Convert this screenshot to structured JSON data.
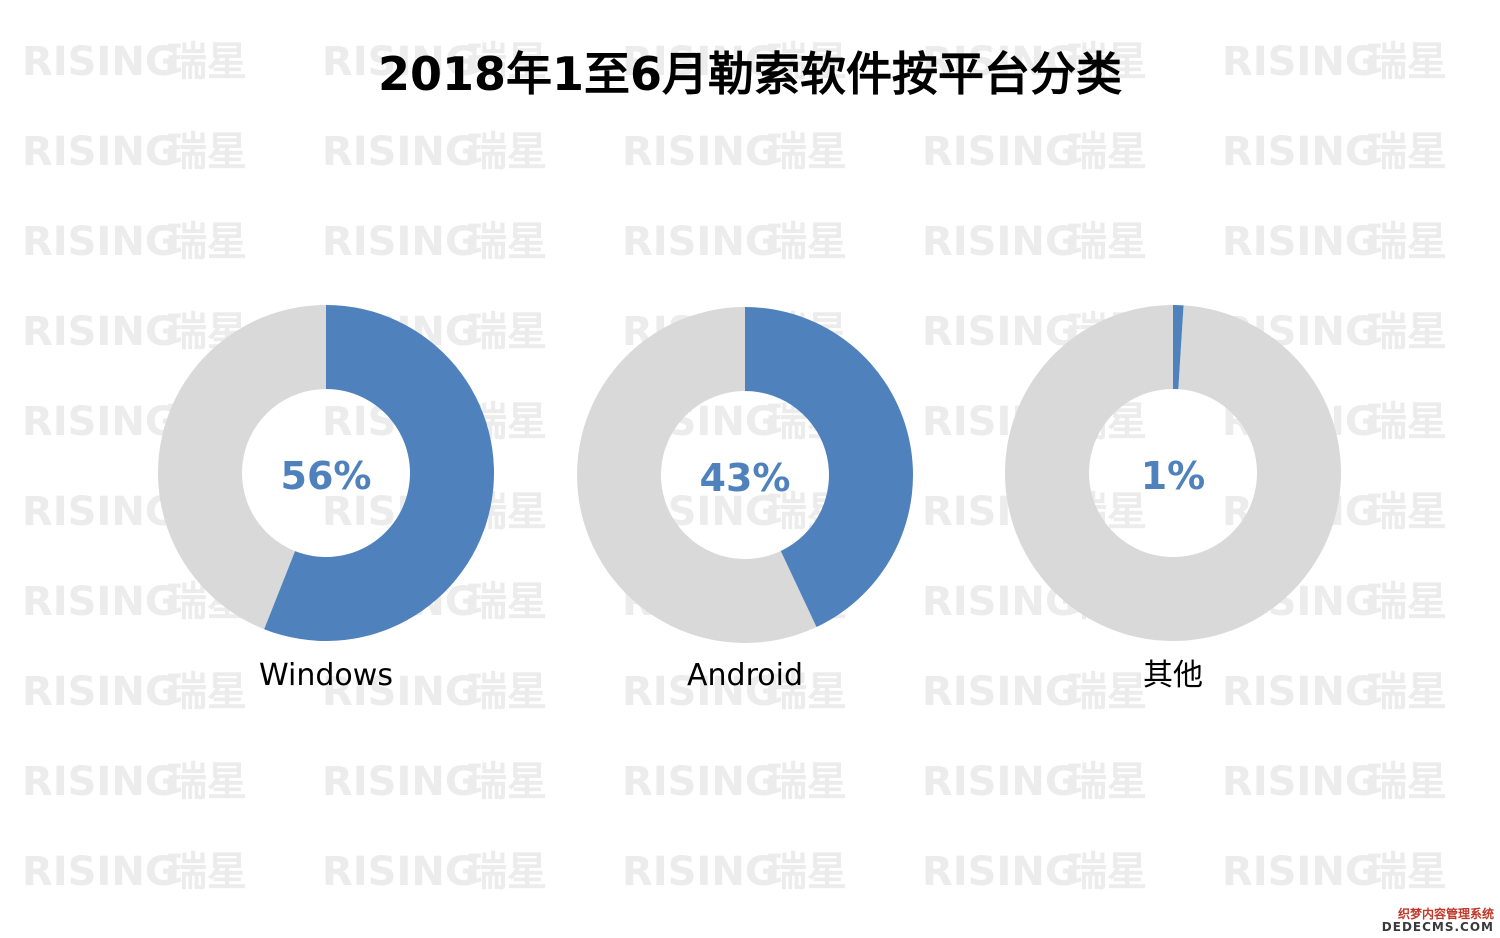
{
  "watermark": {
    "latin": "RISING",
    "cjk": "瑞星"
  },
  "footer_mark": {
    "line1": "织梦内容管理系统",
    "line2": "DEDECMS.COM"
  },
  "colors": {
    "highlight": "#4f81bd",
    "remainder": "#d9d9d9",
    "watermark": "#ececec"
  },
  "chart_data": {
    "type": "pie",
    "style": "donut",
    "title": "2018年1至6月勒索软件按平台分类",
    "categories": [
      "Windows",
      "Android",
      "其他"
    ],
    "values": [
      56,
      43,
      1
    ],
    "value_labels": [
      "56%",
      "43%",
      "1%"
    ],
    "unit": "%"
  }
}
